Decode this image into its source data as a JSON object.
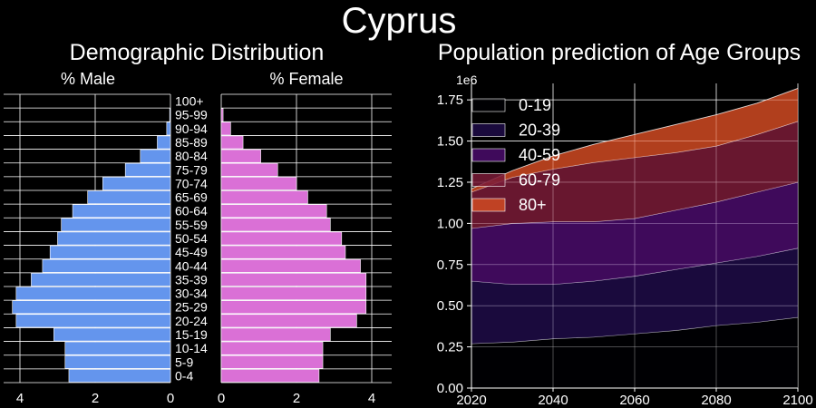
{
  "title": "Cyprus",
  "chart_data": [
    {
      "type": "bar",
      "orientation": "horizontal-pyramid",
      "title": "Demographic Distribution",
      "left_label": "% Male",
      "right_label": "% Female",
      "categories": [
        "0-4",
        "5-9",
        "10-14",
        "15-19",
        "20-24",
        "25-29",
        "30-34",
        "35-39",
        "40-44",
        "45-49",
        "50-54",
        "55-59",
        "60-64",
        "65-69",
        "70-74",
        "75-79",
        "80-84",
        "85-89",
        "90-94",
        "95-99",
        "100+"
      ],
      "series": [
        {
          "name": "% Male",
          "color": "#6495ED",
          "values": [
            2.7,
            2.8,
            2.8,
            3.1,
            4.1,
            4.2,
            4.1,
            3.7,
            3.4,
            3.2,
            3.0,
            2.9,
            2.6,
            2.2,
            1.8,
            1.2,
            0.8,
            0.35,
            0.1,
            0.02,
            0.0
          ]
        },
        {
          "name": "% Female",
          "color": "#DA70D6",
          "values": [
            2.6,
            2.7,
            2.7,
            2.9,
            3.6,
            3.85,
            3.85,
            3.85,
            3.7,
            3.3,
            3.2,
            2.9,
            2.8,
            2.3,
            2.0,
            1.5,
            1.05,
            0.58,
            0.25,
            0.05,
            0.0
          ]
        }
      ],
      "xlim_male": [
        4.5,
        0
      ],
      "xlim_female": [
        0,
        4.5
      ],
      "male_ticks": [
        4,
        2,
        0
      ],
      "female_ticks": [
        0,
        2,
        4
      ]
    },
    {
      "type": "area",
      "stacked": true,
      "title": "Population prediction of Age Groups",
      "y_multiplier_label": "1e6",
      "x": [
        2020,
        2030,
        2040,
        2050,
        2060,
        2070,
        2080,
        2090,
        2100
      ],
      "xlim": [
        2020,
        2100
      ],
      "ylim": [
        0,
        1.85
      ],
      "x_ticks": [
        2020,
        2040,
        2060,
        2080,
        2100
      ],
      "y_ticks": [
        "0.00",
        "0.25",
        "0.50",
        "0.75",
        "1.00",
        "1.25",
        "1.50",
        "1.75"
      ],
      "legend_position": "top-left",
      "series": [
        {
          "name": "0-19",
          "color": "#000004",
          "values": [
            0.27,
            0.28,
            0.3,
            0.31,
            0.33,
            0.35,
            0.38,
            0.4,
            0.43
          ]
        },
        {
          "name": "20-39",
          "color": "#1F0C48",
          "values": [
            0.65,
            0.63,
            0.63,
            0.65,
            0.68,
            0.72,
            0.76,
            0.8,
            0.85
          ]
        },
        {
          "name": "40-59",
          "color": "#4A0C6B",
          "values": [
            0.97,
            1.0,
            1.01,
            1.01,
            1.03,
            1.08,
            1.13,
            1.19,
            1.25
          ]
        },
        {
          "name": "60-79",
          "color": "#7A1B37",
          "values": [
            1.19,
            1.28,
            1.33,
            1.37,
            1.4,
            1.43,
            1.47,
            1.54,
            1.62
          ]
        },
        {
          "name": "80+",
          "color": "#D04A22",
          "values": [
            1.21,
            1.32,
            1.41,
            1.48,
            1.54,
            1.6,
            1.66,
            1.73,
            1.82
          ]
        }
      ]
    }
  ]
}
